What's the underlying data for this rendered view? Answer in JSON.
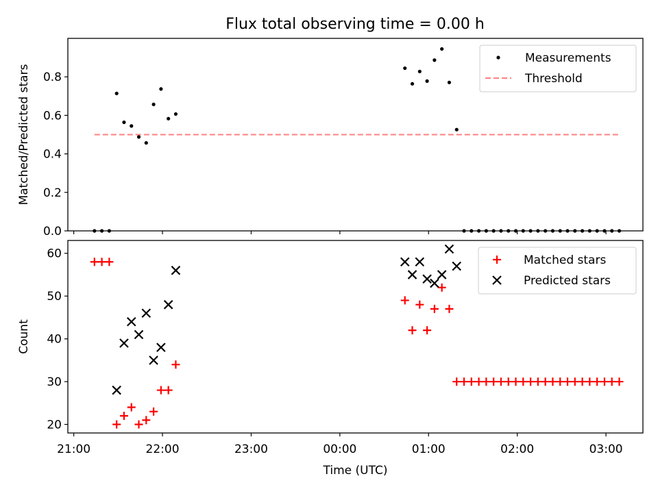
{
  "title": "Flux total observing time = 0.00 h",
  "chart_data": [
    {
      "type": "scatter",
      "title": "Flux total observing time = 0.00 h",
      "xlabel": "",
      "ylabel": "Matched/Predicted stars",
      "xlim": [
        "20:56",
        "03:25"
      ],
      "ylim": [
        0,
        1.0
      ],
      "yticks": [
        0.0,
        0.2,
        0.4,
        0.6,
        0.8
      ],
      "ytick_labels": [
        "0.0",
        "0.2",
        "0.4",
        "0.6",
        "0.8"
      ],
      "xticks": [
        "21:00",
        "22:00",
        "23:00",
        "00:00",
        "01:00",
        "02:00",
        "03:00"
      ],
      "grid": false,
      "legend_position": "top-right",
      "series": [
        {
          "name": "Measurements",
          "kind": "points",
          "color": "#000000",
          "points": [
            [
              "21:14",
              0.0
            ],
            [
              "21:19",
              0.0
            ],
            [
              "21:24",
              0.0
            ],
            [
              "21:29",
              0.714
            ],
            [
              "21:34",
              0.564
            ],
            [
              "21:39",
              0.545
            ],
            [
              "21:44",
              0.488
            ],
            [
              "21:49",
              0.457
            ],
            [
              "21:54",
              0.657
            ],
            [
              "21:59",
              0.737
            ],
            [
              "22:04",
              0.583
            ],
            [
              "22:09",
              0.607
            ],
            [
              "00:44",
              0.845
            ],
            [
              "00:49",
              0.764
            ],
            [
              "00:54",
              0.828
            ],
            [
              "00:59",
              0.778
            ],
            [
              "01:04",
              0.887
            ],
            [
              "01:09",
              0.945
            ],
            [
              "01:14",
              0.771
            ],
            [
              "01:19",
              0.526
            ],
            [
              "01:24",
              0.0
            ],
            [
              "01:29",
              0.0
            ],
            [
              "01:34",
              0.0
            ],
            [
              "01:39",
              0.0
            ],
            [
              "01:44",
              0.0
            ],
            [
              "01:49",
              0.0
            ],
            [
              "01:54",
              0.0
            ],
            [
              "01:59",
              0.0
            ],
            [
              "02:04",
              0.0
            ],
            [
              "02:09",
              0.0
            ],
            [
              "02:14",
              0.0
            ],
            [
              "02:19",
              0.0
            ],
            [
              "02:24",
              0.0
            ],
            [
              "02:29",
              0.0
            ],
            [
              "02:34",
              0.0
            ],
            [
              "02:39",
              0.0
            ],
            [
              "02:44",
              0.0
            ],
            [
              "02:49",
              0.0
            ],
            [
              "02:54",
              0.0
            ],
            [
              "02:59",
              0.0
            ],
            [
              "03:04",
              0.0
            ],
            [
              "03:09",
              0.0
            ]
          ]
        },
        {
          "name": "Threshold",
          "kind": "dashed-line",
          "color": "#ff7f7f",
          "points": [
            [
              "21:14",
              0.5
            ],
            [
              "03:09",
              0.5
            ]
          ]
        }
      ]
    },
    {
      "type": "scatter",
      "title": "",
      "xlabel": "Time (UTC)",
      "ylabel": "Count",
      "xlim": [
        "20:56",
        "03:25"
      ],
      "ylim": [
        18,
        63
      ],
      "yticks": [
        20,
        30,
        40,
        50,
        60
      ],
      "ytick_labels": [
        "20",
        "30",
        "40",
        "50",
        "60"
      ],
      "xticks": [
        "21:00",
        "22:00",
        "23:00",
        "00:00",
        "01:00",
        "02:00",
        "03:00"
      ],
      "xtick_labels": [
        "21:00",
        "22:00",
        "23:00",
        "00:00",
        "01:00",
        "02:00",
        "03:00"
      ],
      "grid": false,
      "legend_position": "top-right",
      "series": [
        {
          "name": "Matched stars",
          "kind": "plus",
          "color": "#ff0000",
          "points": [
            [
              "21:14",
              58
            ],
            [
              "21:19",
              58
            ],
            [
              "21:24",
              58
            ],
            [
              "21:29",
              20
            ],
            [
              "21:34",
              22
            ],
            [
              "21:39",
              24
            ],
            [
              "21:44",
              20
            ],
            [
              "21:49",
              21
            ],
            [
              "21:54",
              23
            ],
            [
              "21:59",
              28
            ],
            [
              "22:04",
              28
            ],
            [
              "22:09",
              34
            ],
            [
              "00:44",
              49
            ],
            [
              "00:49",
              42
            ],
            [
              "00:54",
              48
            ],
            [
              "00:59",
              42
            ],
            [
              "01:04",
              47
            ],
            [
              "01:09",
              52
            ],
            [
              "01:14",
              47
            ],
            [
              "01:19",
              30
            ],
            [
              "01:24",
              30
            ],
            [
              "01:29",
              30
            ],
            [
              "01:34",
              30
            ],
            [
              "01:39",
              30
            ],
            [
              "01:44",
              30
            ],
            [
              "01:49",
              30
            ],
            [
              "01:54",
              30
            ],
            [
              "01:59",
              30
            ],
            [
              "02:04",
              30
            ],
            [
              "02:09",
              30
            ],
            [
              "02:14",
              30
            ],
            [
              "02:19",
              30
            ],
            [
              "02:24",
              30
            ],
            [
              "02:29",
              30
            ],
            [
              "02:34",
              30
            ],
            [
              "02:39",
              30
            ],
            [
              "02:44",
              30
            ],
            [
              "02:49",
              30
            ],
            [
              "02:54",
              30
            ],
            [
              "02:59",
              30
            ],
            [
              "03:04",
              30
            ],
            [
              "03:09",
              30
            ]
          ]
        },
        {
          "name": "Predicted stars",
          "kind": "x",
          "color": "#000000",
          "points": [
            [
              "21:29",
              28
            ],
            [
              "21:34",
              39
            ],
            [
              "21:39",
              44
            ],
            [
              "21:44",
              41
            ],
            [
              "21:49",
              46
            ],
            [
              "21:54",
              35
            ],
            [
              "21:59",
              38
            ],
            [
              "22:04",
              48
            ],
            [
              "22:09",
              56
            ],
            [
              "00:44",
              58
            ],
            [
              "00:49",
              55
            ],
            [
              "00:54",
              58
            ],
            [
              "00:59",
              54
            ],
            [
              "01:04",
              53
            ],
            [
              "01:09",
              55
            ],
            [
              "01:14",
              61
            ],
            [
              "01:19",
              57
            ]
          ]
        }
      ]
    }
  ]
}
